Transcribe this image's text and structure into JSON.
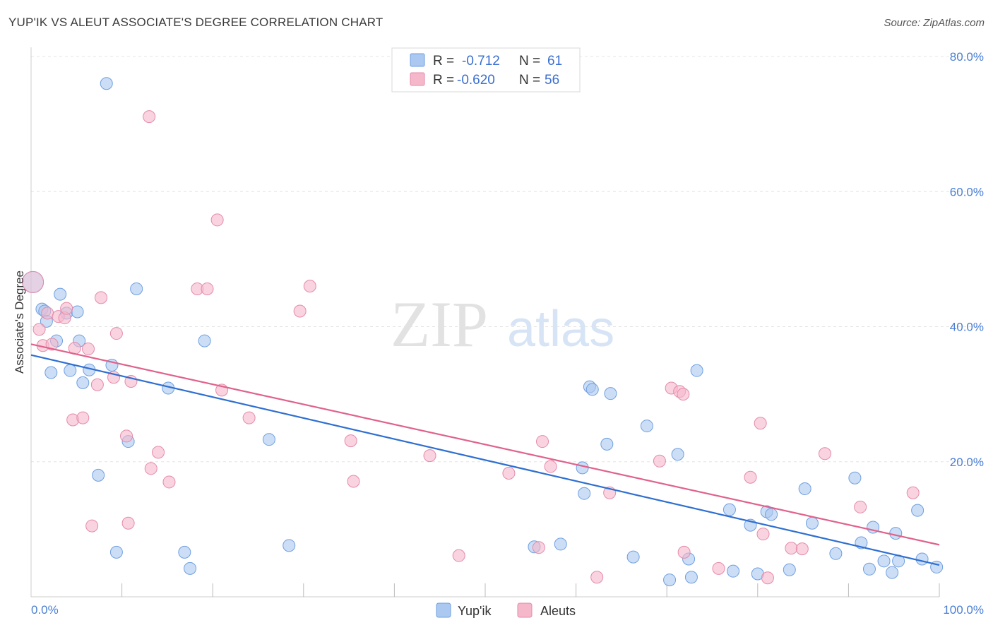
{
  "header": {
    "title": "YUP'IK VS ALEUT ASSOCIATE'S DEGREE CORRELATION CHART",
    "source": "Source: ZipAtlas.com"
  },
  "watermark": {
    "zip": "ZIP",
    "atlas": "atlas"
  },
  "legend": {
    "rows": [
      {
        "r_label": "R =",
        "r_value": "-0.712",
        "n_label": "N =",
        "n_value": "61",
        "color": "#aac8f0"
      },
      {
        "r_label": "R =",
        "r_value": "-0.620",
        "n_label": "N =",
        "n_value": "56",
        "color": "#f5b8cb"
      }
    ]
  },
  "bottom_legend": [
    {
      "label": "Yup'ik",
      "color": "#aac8f0"
    },
    {
      "label": "Aleuts",
      "color": "#f5b8cb"
    }
  ],
  "chart_data": {
    "type": "scatter",
    "title": "YUP'IK VS ALEUT ASSOCIATE'S DEGREE CORRELATION CHART",
    "xlabel": "",
    "ylabel": "Associate's Degree",
    "xlim": [
      0,
      100
    ],
    "ylim": [
      0,
      80
    ],
    "x_tick_labels": [
      "0.0%",
      "100.0%"
    ],
    "y_ticks": [
      20,
      40,
      60,
      80
    ],
    "y_tick_labels": [
      "20.0%",
      "40.0%",
      "60.0%",
      "80.0%"
    ],
    "grid": true,
    "legend_position": "top-center",
    "series": [
      {
        "name": "Yup'ik",
        "color": "#aac8f0",
        "stroke": "#6f9fe0",
        "line_color": "#2f6fd0",
        "trend": {
          "x": [
            0,
            100
          ],
          "y": [
            35.8,
            4.7
          ]
        },
        "points": [
          [
            0.2,
            46.6
          ],
          [
            1.2,
            42.6
          ],
          [
            1.5,
            42.3
          ],
          [
            1.7,
            40.8
          ],
          [
            2.2,
            33.2
          ],
          [
            2.8,
            37.9
          ],
          [
            3.2,
            44.8
          ],
          [
            3.9,
            42.0
          ],
          [
            4.3,
            33.5
          ],
          [
            5.1,
            42.2
          ],
          [
            5.3,
            37.9
          ],
          [
            5.7,
            31.7
          ],
          [
            6.4,
            33.6
          ],
          [
            7.4,
            18.0
          ],
          [
            8.3,
            76.0
          ],
          [
            8.9,
            34.3
          ],
          [
            9.4,
            6.6
          ],
          [
            10.7,
            23.0
          ],
          [
            11.6,
            45.6
          ],
          [
            15.1,
            30.9
          ],
          [
            16.9,
            6.6
          ],
          [
            17.5,
            4.2
          ],
          [
            19.1,
            37.9
          ],
          [
            26.2,
            23.3
          ],
          [
            28.4,
            7.6
          ],
          [
            55.4,
            7.4
          ],
          [
            58.3,
            7.8
          ],
          [
            60.7,
            19.1
          ],
          [
            60.9,
            15.3
          ],
          [
            61.5,
            31.1
          ],
          [
            61.8,
            30.7
          ],
          [
            63.4,
            22.6
          ],
          [
            63.8,
            30.1
          ],
          [
            66.3,
            5.9
          ],
          [
            67.8,
            25.3
          ],
          [
            70.3,
            2.5
          ],
          [
            71.2,
            21.1
          ],
          [
            72.4,
            5.6
          ],
          [
            72.7,
            2.9
          ],
          [
            73.3,
            33.5
          ],
          [
            76.9,
            12.9
          ],
          [
            77.3,
            3.8
          ],
          [
            79.2,
            10.6
          ],
          [
            80.0,
            3.4
          ],
          [
            81.0,
            12.6
          ],
          [
            81.5,
            12.2
          ],
          [
            83.5,
            4.0
          ],
          [
            85.2,
            16.0
          ],
          [
            86.0,
            10.9
          ],
          [
            88.6,
            6.4
          ],
          [
            90.7,
            17.6
          ],
          [
            91.4,
            8.0
          ],
          [
            92.3,
            4.1
          ],
          [
            92.7,
            10.3
          ],
          [
            93.9,
            5.3
          ],
          [
            94.8,
            3.6
          ],
          [
            95.2,
            9.4
          ],
          [
            95.5,
            5.3
          ],
          [
            97.6,
            12.8
          ],
          [
            98.1,
            5.6
          ],
          [
            99.7,
            4.4
          ]
        ]
      },
      {
        "name": "Aleuts",
        "color": "#f5b8cb",
        "stroke": "#e58aa8",
        "line_color": "#e0628b",
        "trend": {
          "x": [
            0,
            100
          ],
          "y": [
            37.4,
            7.7
          ]
        },
        "points": [
          [
            0.2,
            46.6
          ],
          [
            0.9,
            39.6
          ],
          [
            1.3,
            37.2
          ],
          [
            1.8,
            42.0
          ],
          [
            2.3,
            37.4
          ],
          [
            3.0,
            41.5
          ],
          [
            3.7,
            41.3
          ],
          [
            3.9,
            42.7
          ],
          [
            4.6,
            26.2
          ],
          [
            4.8,
            36.8
          ],
          [
            5.7,
            26.5
          ],
          [
            6.3,
            36.7
          ],
          [
            6.7,
            10.5
          ],
          [
            7.3,
            31.4
          ],
          [
            7.7,
            44.3
          ],
          [
            9.1,
            32.5
          ],
          [
            9.4,
            39.0
          ],
          [
            10.5,
            23.8
          ],
          [
            10.7,
            10.9
          ],
          [
            11.0,
            31.9
          ],
          [
            13.0,
            71.1
          ],
          [
            13.2,
            19.0
          ],
          [
            14.0,
            21.4
          ],
          [
            15.2,
            17.0
          ],
          [
            18.3,
            45.6
          ],
          [
            19.4,
            45.6
          ],
          [
            20.5,
            55.8
          ],
          [
            21.0,
            30.6
          ],
          [
            24.0,
            26.5
          ],
          [
            29.6,
            42.3
          ],
          [
            30.7,
            46.0
          ],
          [
            35.2,
            23.1
          ],
          [
            35.5,
            17.1
          ],
          [
            43.9,
            20.9
          ],
          [
            47.1,
            6.1
          ],
          [
            52.6,
            18.3
          ],
          [
            55.9,
            7.3
          ],
          [
            56.3,
            23.0
          ],
          [
            57.2,
            19.3
          ],
          [
            62.3,
            2.9
          ],
          [
            63.7,
            15.4
          ],
          [
            69.2,
            20.1
          ],
          [
            70.5,
            30.9
          ],
          [
            71.4,
            30.4
          ],
          [
            71.8,
            30.0
          ],
          [
            71.9,
            6.6
          ],
          [
            75.7,
            4.2
          ],
          [
            79.2,
            17.7
          ],
          [
            80.3,
            25.7
          ],
          [
            80.6,
            9.3
          ],
          [
            81.1,
            2.8
          ],
          [
            83.7,
            7.2
          ],
          [
            84.9,
            7.1
          ],
          [
            87.4,
            21.2
          ],
          [
            91.3,
            13.3
          ],
          [
            97.1,
            15.4
          ]
        ]
      }
    ]
  }
}
